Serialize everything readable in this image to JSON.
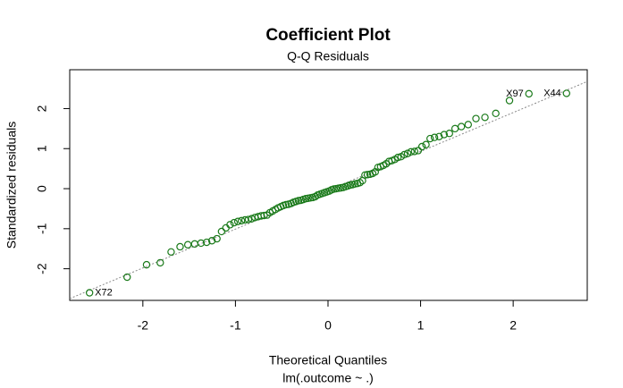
{
  "chart_data": {
    "type": "scatter",
    "title": "Coefficient Plot",
    "subtitle": "Q-Q Residuals",
    "xlabel": "Theoretical Quantiles",
    "xlabel2": "lm(.outcome ~ .)",
    "ylabel": "Standardized residuals",
    "color": "#1a7a1a",
    "line_color": "#888888",
    "xlim": [
      -2.79,
      2.8
    ],
    "ylim": [
      -2.79,
      2.97
    ],
    "xticks": [
      -2,
      -1,
      0,
      1,
      2
    ],
    "yticks": [
      -2,
      -1,
      0,
      1,
      2
    ],
    "reference_line": {
      "slope": 0.97,
      "intercept": -0.04
    },
    "x": [
      -2.576,
      -2.17,
      -1.96,
      -1.812,
      -1.695,
      -1.598,
      -1.514,
      -1.44,
      -1.372,
      -1.311,
      -1.254,
      -1.2,
      -1.15,
      -1.103,
      -1.058,
      -1.015,
      -0.974,
      -0.935,
      -0.896,
      -0.86,
      -0.824,
      -0.789,
      -0.755,
      -0.722,
      -0.69,
      -0.659,
      -0.628,
      -0.598,
      -0.568,
      -0.539,
      -0.51,
      -0.482,
      -0.454,
      -0.426,
      -0.399,
      -0.372,
      -0.345,
      -0.319,
      -0.292,
      -0.266,
      -0.24,
      -0.215,
      -0.189,
      -0.164,
      -0.138,
      -0.113,
      -0.088,
      -0.063,
      -0.038,
      -0.013,
      0.013,
      0.038,
      0.063,
      0.088,
      0.113,
      0.138,
      0.164,
      0.189,
      0.215,
      0.24,
      0.266,
      0.292,
      0.319,
      0.345,
      0.372,
      0.399,
      0.426,
      0.454,
      0.482,
      0.51,
      0.539,
      0.568,
      0.598,
      0.628,
      0.659,
      0.69,
      0.722,
      0.755,
      0.789,
      0.824,
      0.86,
      0.896,
      0.935,
      0.974,
      1.015,
      1.058,
      1.103,
      1.15,
      1.2,
      1.254,
      1.311,
      1.372,
      1.44,
      1.514,
      1.598,
      1.695,
      1.812,
      1.96,
      2.17,
      2.576
    ],
    "values": [
      -2.6,
      -2.21,
      -1.9,
      -1.85,
      -1.58,
      -1.45,
      -1.4,
      -1.38,
      -1.36,
      -1.34,
      -1.3,
      -1.25,
      -1.07,
      -0.98,
      -0.9,
      -0.85,
      -0.82,
      -0.8,
      -0.78,
      -0.77,
      -0.75,
      -0.72,
      -0.7,
      -0.68,
      -0.67,
      -0.66,
      -0.6,
      -0.56,
      -0.52,
      -0.48,
      -0.45,
      -0.42,
      -0.4,
      -0.39,
      -0.37,
      -0.34,
      -0.32,
      -0.3,
      -0.29,
      -0.27,
      -0.25,
      -0.24,
      -0.23,
      -0.22,
      -0.2,
      -0.16,
      -0.14,
      -0.12,
      -0.1,
      -0.08,
      -0.06,
      -0.03,
      -0.01,
      0.0,
      0.01,
      0.02,
      0.03,
      0.05,
      0.07,
      0.09,
      0.1,
      0.12,
      0.13,
      0.15,
      0.2,
      0.34,
      0.35,
      0.36,
      0.38,
      0.42,
      0.53,
      0.55,
      0.58,
      0.62,
      0.68,
      0.7,
      0.73,
      0.78,
      0.8,
      0.85,
      0.88,
      0.92,
      0.93,
      0.95,
      1.05,
      1.1,
      1.25,
      1.28,
      1.3,
      1.35,
      1.38,
      1.5,
      1.55,
      1.6,
      1.75,
      1.78,
      1.88,
      2.2,
      2.37,
      2.38
    ],
    "point_labels": [
      "X72",
      null,
      null,
      null,
      null,
      null,
      null,
      null,
      null,
      null,
      null,
      null,
      null,
      null,
      null,
      null,
      null,
      null,
      null,
      null,
      null,
      null,
      null,
      null,
      null,
      null,
      null,
      null,
      null,
      null,
      null,
      null,
      null,
      null,
      null,
      null,
      null,
      null,
      null,
      null,
      null,
      null,
      null,
      null,
      null,
      null,
      null,
      null,
      null,
      null,
      null,
      null,
      null,
      null,
      null,
      null,
      null,
      null,
      null,
      null,
      null,
      null,
      null,
      null,
      null,
      null,
      null,
      null,
      null,
      null,
      null,
      null,
      null,
      null,
      null,
      null,
      null,
      null,
      null,
      null,
      null,
      null,
      null,
      null,
      null,
      null,
      null,
      null,
      null,
      null,
      null,
      null,
      null,
      null,
      null,
      null,
      null,
      null,
      "X97",
      "X44"
    ]
  }
}
